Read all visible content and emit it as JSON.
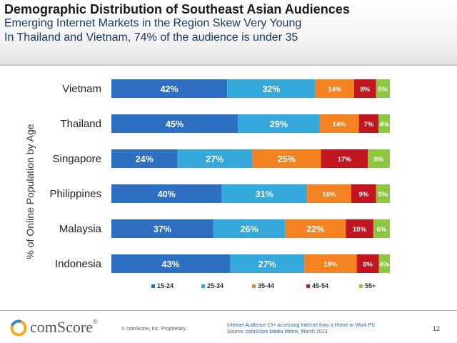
{
  "header": {
    "title": "Demographic Distribution of Southeast Asian Audiences",
    "subtitle_line1": "Emerging Internet Markets in the Region Skew Very Young",
    "subtitle_line2": "In Thailand and Vietnam, 74% of the audience is under 35"
  },
  "chart_data": {
    "type": "bar",
    "orientation": "horizontal",
    "stacked": true,
    "ylabel": "% of Online Population by Age",
    "categories": [
      "Vietnam",
      "Thailand",
      "Singapore",
      "Philippines",
      "Malaysia",
      "Indonesia"
    ],
    "series": [
      {
        "name": "15-24",
        "color": "#2e6fc1",
        "values": [
          42,
          45,
          24,
          40,
          37,
          43
        ]
      },
      {
        "name": "25-34",
        "color": "#35a9dc",
        "values": [
          32,
          29,
          27,
          31,
          26,
          27
        ]
      },
      {
        "name": "35-44",
        "color": "#f58220",
        "values": [
          14,
          14,
          25,
          16,
          22,
          19
        ]
      },
      {
        "name": "45-54",
        "color": "#c1151f",
        "values": [
          8,
          7,
          17,
          9,
          10,
          8
        ]
      },
      {
        "name": "55+",
        "color": "#8dc63f",
        "values": [
          5,
          4,
          8,
          5,
          6,
          4
        ]
      }
    ],
    "value_labels": [
      [
        "42%",
        "32%",
        "14%",
        "8%",
        "5%"
      ],
      [
        "45%",
        "29%",
        "14%",
        "7%",
        "4%"
      ],
      [
        "24%",
        "27%",
        "25%",
        "17%",
        "8%"
      ],
      [
        "40%",
        "31%",
        "16%",
        "9%",
        "5%"
      ],
      [
        "37%",
        "26%",
        "22%",
        "10%",
        "6%"
      ],
      [
        "43%",
        "27%",
        "19%",
        "8%",
        "4%"
      ]
    ],
    "xlim": [
      0,
      100
    ],
    "grid": false,
    "legend_position": "bottom"
  },
  "footer": {
    "logo_text": "comScore",
    "logo_mark": "®",
    "copyright": "© comScore, Inc.    Proprietary.",
    "source_line1": "Internet Audience 15+ accessing Internet from a Home or Work PC",
    "source_line2": "Source:  comScore Media Metrix, March 2013",
    "page_number": "12"
  },
  "colors": {
    "title": "#1a1a1a",
    "subtitle": "#1a3a66",
    "label_dark": "#333333",
    "footer_source": "#2c5fa8"
  }
}
